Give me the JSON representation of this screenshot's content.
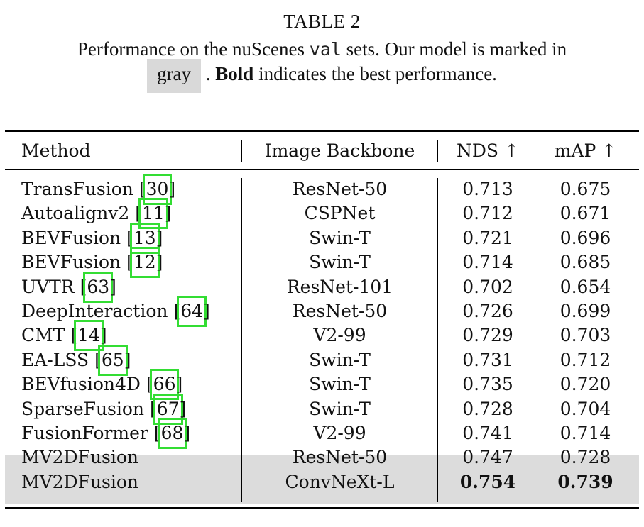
{
  "caption": {
    "title": "TABLE 2",
    "line1_pre": "Performance on the nuScenes ",
    "line1_mono": "val",
    "line1_post": " sets. Our model is marked in",
    "line2_chip": "gray",
    "line2_mid": " . ",
    "line2_bold": "Bold",
    "line2_post": " indicates the best performance."
  },
  "table": {
    "headers": {
      "method": "Method",
      "backbone": "Image Backbone",
      "nds": "NDS ↑",
      "map": "mAP ↑"
    },
    "rows": [
      {
        "method": "TransFusion [",
        "ref": "30",
        "close": "]",
        "backbone": "ResNet-50",
        "nds": "0.713",
        "map": "0.675"
      },
      {
        "method": "Autoalignv2 [",
        "ref": "11",
        "close": "]",
        "backbone": "CSPNet",
        "nds": "0.712",
        "map": "0.671"
      },
      {
        "method": "BEVFusion [",
        "ref": "13",
        "close": "]",
        "backbone": "Swin-T",
        "nds": "0.721",
        "map": "0.696"
      },
      {
        "method": "BEVFusion [",
        "ref": "12",
        "close": "]",
        "backbone": "Swin-T",
        "nds": "0.714",
        "map": "0.685"
      },
      {
        "method": "UVTR [",
        "ref": "63",
        "close": "]",
        "backbone": "ResNet-101",
        "nds": "0.702",
        "map": "0.654"
      },
      {
        "method": "DeepInteraction [",
        "ref": "64",
        "close": "]",
        "backbone": "ResNet-50",
        "nds": "0.726",
        "map": "0.699"
      },
      {
        "method": "CMT [",
        "ref": "14",
        "close": "]",
        "backbone": "V2-99",
        "nds": "0.729",
        "map": "0.703"
      },
      {
        "method": "EA-LSS [",
        "ref": "65",
        "close": "]",
        "backbone": "Swin-T",
        "nds": "0.731",
        "map": "0.712"
      },
      {
        "method": "BEVfusion4D [",
        "ref": "66",
        "close": "]",
        "backbone": "Swin-T",
        "nds": "0.735",
        "map": "0.720"
      },
      {
        "method": "SparseFusion [",
        "ref": "67",
        "close": "]",
        "backbone": "Swin-T",
        "nds": "0.728",
        "map": "0.704"
      },
      {
        "method": "FusionFormer [",
        "ref": "68",
        "close": "]",
        "backbone": "V2-99",
        "nds": "0.741",
        "map": "0.714"
      },
      {
        "method": "MV2DFusion",
        "ref": "",
        "close": "",
        "backbone": "ResNet-50",
        "nds": "0.747",
        "map": "0.728"
      },
      {
        "method": "MV2DFusion",
        "ref": "",
        "close": "",
        "backbone": "ConvNeXt-L",
        "nds": "0.754",
        "map": "0.739"
      }
    ],
    "shaded_rows": [
      11,
      12
    ],
    "bold_cells": [
      {
        "row": 12,
        "col": "nds"
      },
      {
        "row": 12,
        "col": "map"
      }
    ],
    "highlight_colors": {
      "shade": "#dcdcdc",
      "ref_box": "#33dd33",
      "chip": "#d9d9d9"
    }
  }
}
